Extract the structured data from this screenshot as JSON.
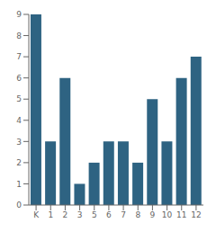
{
  "chart_data": {
    "type": "bar",
    "categories": [
      "K",
      "1",
      "2",
      "3",
      "5",
      "6",
      "7",
      "8",
      "9",
      "10",
      "11",
      "12"
    ],
    "values": [
      9,
      3,
      6,
      1,
      2,
      3,
      3,
      2,
      5,
      3,
      6,
      7
    ],
    "color": "#2e6382",
    "ylim": [
      0,
      9
    ],
    "yticks": [
      0,
      1,
      2,
      3,
      4,
      5,
      6,
      7,
      8,
      9
    ],
    "grid": false
  }
}
